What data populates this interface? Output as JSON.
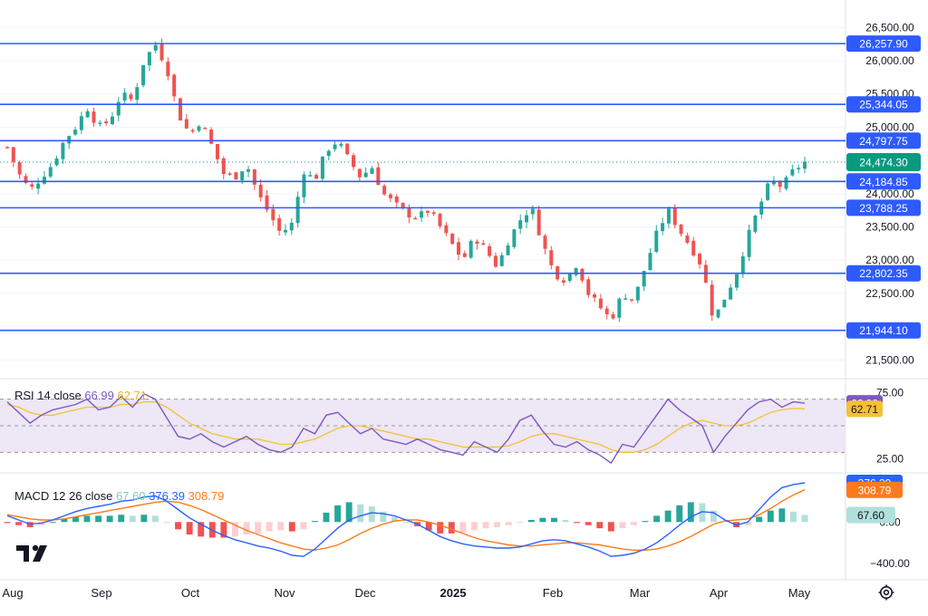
{
  "chart_data": [
    {
      "type": "candlestick",
      "panel": "price",
      "y_ticks": [
        "26,500.00",
        "26,000.00",
        "25,500.00",
        "25,000.00",
        "24,500.00",
        "24,000.00",
        "23,500.00",
        "23,000.00",
        "22,500.00",
        "22,000.00",
        "21,500.00"
      ],
      "ylim": [
        21300,
        26750
      ],
      "levels": [
        {
          "value": 26257.9,
          "label": "26,257.90"
        },
        {
          "value": 25344.05,
          "label": "25,344.05"
        },
        {
          "value": 24797.75,
          "label": "24,797.75"
        },
        {
          "value": 24184.85,
          "label": "24,184.85"
        },
        {
          "value": 23788.25,
          "label": "23,788.25"
        },
        {
          "value": 22802.35,
          "label": "22,802.35"
        },
        {
          "value": 21944.1,
          "label": "21,944.10"
        }
      ],
      "last_price": {
        "value": 24474.3,
        "label": "24,474.30"
      },
      "close_series_approx": [
        24700,
        24300,
        24050,
        24250,
        24450,
        24800,
        25000,
        25300,
        25000,
        25100,
        25500,
        25400,
        26000,
        26250,
        25900,
        25200,
        24900,
        25100,
        24700,
        24300,
        24250,
        24450,
        24000,
        23700,
        23400,
        23550,
        24350,
        24200,
        24650,
        24800,
        24500,
        24250,
        24400,
        24000,
        23850,
        23700,
        23650,
        23750,
        23500,
        23250,
        23000,
        23350,
        23150,
        22900,
        23300,
        23600,
        23800,
        23250,
        22800,
        22700,
        22950,
        22500,
        22300,
        22100,
        22500,
        22400,
        22900,
        23400,
        23750,
        23450,
        23200,
        22900,
        22100,
        22450,
        22800,
        23350,
        23800,
        24200,
        24100,
        24350,
        24474
      ]
    },
    {
      "type": "line",
      "panel": "rsi",
      "indicator": "RSI 14 close",
      "legend_rsi": "66.99",
      "legend_ma": "62.71",
      "y_ticks": [
        "75.00",
        "25.00"
      ],
      "bands": [
        70,
        50,
        30
      ],
      "ylim": [
        20,
        80
      ],
      "series": [
        {
          "name": "RSI",
          "color": "#7e57c2",
          "values": [
            68,
            60,
            52,
            58,
            62,
            64,
            66,
            70,
            62,
            64,
            72,
            64,
            74,
            70,
            56,
            42,
            40,
            44,
            38,
            34,
            38,
            42,
            36,
            32,
            30,
            34,
            48,
            44,
            58,
            60,
            52,
            44,
            48,
            40,
            38,
            36,
            40,
            36,
            32,
            30,
            28,
            38,
            34,
            30,
            40,
            54,
            58,
            46,
            36,
            34,
            38,
            32,
            28,
            22,
            36,
            34,
            46,
            58,
            70,
            62,
            56,
            50,
            30,
            42,
            52,
            62,
            68,
            70,
            64,
            68,
            66.99
          ]
        },
        {
          "name": "RSI MA",
          "color": "#f5c133",
          "values": [
            66,
            64,
            60,
            58,
            58,
            60,
            62,
            64,
            64,
            64,
            66,
            66,
            68,
            68,
            64,
            58,
            52,
            48,
            44,
            42,
            40,
            40,
            40,
            38,
            36,
            36,
            38,
            40,
            44,
            48,
            50,
            50,
            48,
            46,
            44,
            42,
            40,
            40,
            38,
            36,
            34,
            34,
            34,
            34,
            35,
            38,
            42,
            44,
            44,
            42,
            40,
            38,
            36,
            32,
            30,
            30,
            32,
            36,
            42,
            48,
            52,
            54,
            52,
            50,
            50,
            52,
            56,
            60,
            62,
            63,
            62.71
          ]
        }
      ]
    },
    {
      "type": "bar+line",
      "panel": "macd",
      "indicator": "MACD 12 26 close",
      "legend_hist": "67.60",
      "legend_macd": "376.39",
      "legend_signal": "308.79",
      "y_ticks": [
        "0.00",
        "−400.00"
      ],
      "macd_tag": "376.39",
      "ylim": [
        -520,
        420
      ],
      "series": [
        {
          "name": "MACD",
          "color": "#2962ff",
          "values": [
            60,
            20,
            -20,
            -10,
            20,
            60,
            100,
            130,
            150,
            170,
            200,
            210,
            240,
            250,
            200,
            120,
            40,
            -20,
            -80,
            -130,
            -170,
            -200,
            -230,
            -250,
            -280,
            -320,
            -330,
            -260,
            -160,
            -60,
            20,
            60,
            90,
            80,
            60,
            20,
            -20,
            -80,
            -140,
            -180,
            -210,
            -230,
            -240,
            -250,
            -250,
            -240,
            -210,
            -180,
            -170,
            -180,
            -210,
            -240,
            -280,
            -330,
            -320,
            -300,
            -260,
            -200,
            -120,
            -30,
            50,
            100,
            90,
            20,
            -30,
            0,
            120,
            240,
            330,
            360,
            376.39
          ]
        },
        {
          "name": "Signal",
          "color": "#ff7a1a",
          "values": [
            70,
            50,
            30,
            20,
            20,
            30,
            50,
            70,
            90,
            110,
            130,
            150,
            170,
            190,
            200,
            190,
            160,
            120,
            70,
            20,
            -30,
            -80,
            -120,
            -160,
            -200,
            -230,
            -260,
            -270,
            -250,
            -220,
            -170,
            -110,
            -60,
            -20,
            10,
            20,
            20,
            0,
            -30,
            -70,
            -110,
            -150,
            -180,
            -200,
            -220,
            -230,
            -230,
            -220,
            -210,
            -200,
            -200,
            -210,
            -220,
            -240,
            -260,
            -270,
            -270,
            -260,
            -230,
            -190,
            -140,
            -80,
            -20,
            10,
            20,
            30,
            70,
            130,
            200,
            260,
            308.79
          ]
        },
        {
          "name": "Histogram",
          "values": [
            -10,
            -30,
            -50,
            -30,
            0,
            30,
            50,
            60,
            60,
            60,
            70,
            60,
            70,
            60,
            0,
            -70,
            -120,
            -140,
            -150,
            -150,
            -140,
            -120,
            -110,
            -90,
            -80,
            -90,
            -70,
            10,
            90,
            160,
            190,
            170,
            150,
            100,
            50,
            0,
            -40,
            -80,
            -110,
            -110,
            -100,
            -80,
            -60,
            -50,
            -30,
            -10,
            20,
            40,
            40,
            20,
            -10,
            -30,
            -60,
            -90,
            -60,
            -30,
            10,
            60,
            110,
            160,
            190,
            180,
            110,
            10,
            -50,
            -30,
            50,
            110,
            130,
            100,
            67.6
          ]
        }
      ]
    }
  ],
  "x_axis": [
    "Aug",
    "Sep",
    "Oct",
    "Nov",
    "Dec",
    "2025",
    "Feb",
    "Mar",
    "Apr",
    "May"
  ],
  "colors": {
    "up": "#26a69a",
    "down": "#ef5350",
    "level_line": "#2e5bff",
    "last_tag": "#089981",
    "rsi": "#7e57c2",
    "rsi_ma": "#f5c133",
    "macd": "#2962ff",
    "signal": "#ff7a1a",
    "hist_pos": "#26a69a",
    "hist_pos_light": "#b2dfdb",
    "hist_neg": "#ef5350",
    "hist_neg_light": "#ffcdd2",
    "band_fill": "#ede7f6",
    "grid": "#f0f3fa"
  },
  "icons": {
    "logo": "tradingview-logo-icon",
    "settings": "settings-gear-icon"
  }
}
